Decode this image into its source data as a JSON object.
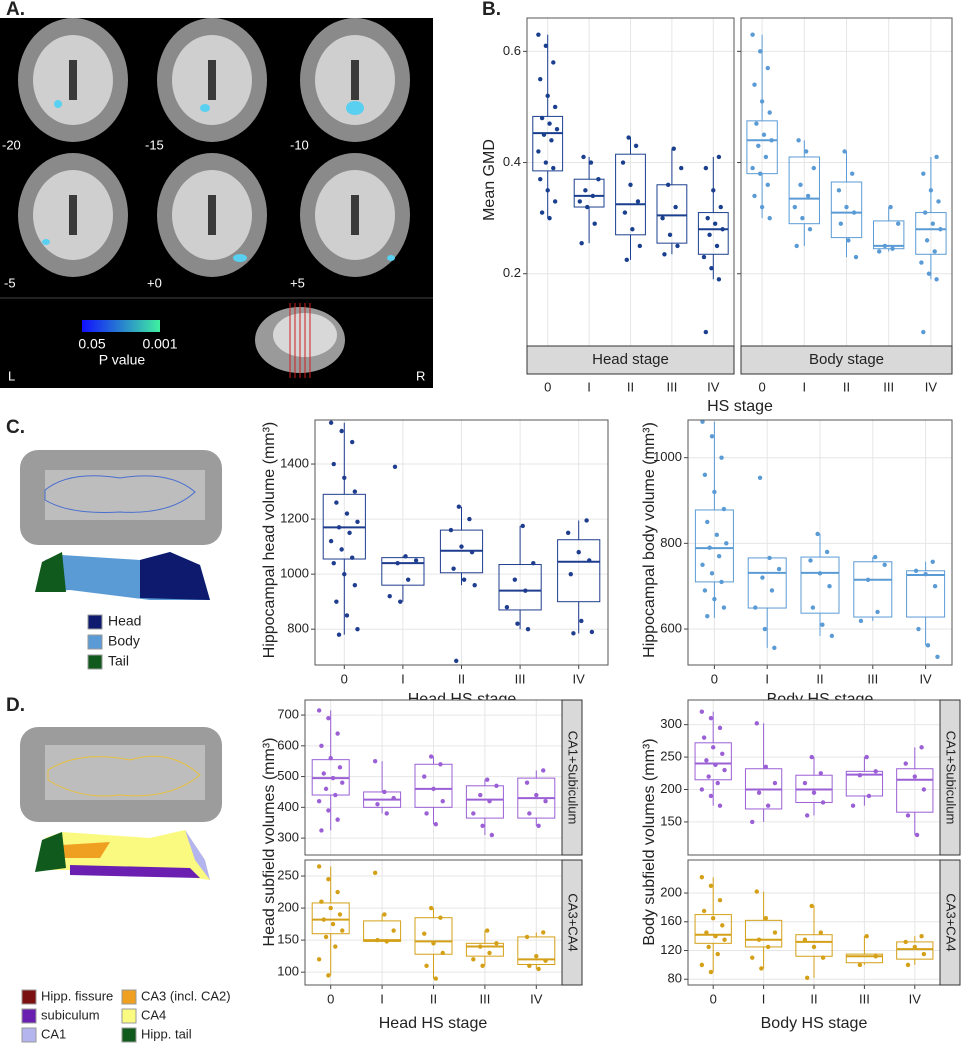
{
  "panel_labels": [
    "A.",
    "B.",
    "C.",
    "D."
  ],
  "brain_panel": {
    "slice_labels": [
      "-20",
      "-15",
      "-10",
      "-5",
      "+0",
      "+5"
    ],
    "colorbar_low": "0.05",
    "colorbar_high": "0.001",
    "colorbar_title": "P value",
    "left": "L",
    "right": "R"
  },
  "c_legend": [
    {
      "label": "Head",
      "color": "#0d1a6e"
    },
    {
      "label": "Body",
      "color": "#5b9bd5"
    },
    {
      "label": "Tail",
      "color": "#0f5a1c"
    }
  ],
  "d_legend": [
    {
      "label": "Hipp. fissure",
      "color": "#7a1010"
    },
    {
      "label": "subiculum",
      "color": "#6a1fb0"
    },
    {
      "label": "CA1",
      "color": "#b4b4ee"
    },
    {
      "label": "CA3 (incl. CA2)",
      "color": "#f0a020"
    },
    {
      "label": "CA4",
      "color": "#fafa80"
    },
    {
      "label": "Hipp. tail",
      "color": "#0f5a1c"
    }
  ],
  "chart_data": [
    {
      "type": "box",
      "y_label": "Mean GMD",
      "x_label": "HS stage",
      "categories": [
        "0",
        "I",
        "II",
        "III",
        "IV"
      ],
      "ylim": [
        0.07,
        0.66
      ],
      "yticks": [
        0.2,
        0.4,
        0.6
      ],
      "grid": true,
      "facets": [
        {
          "strip": "Head stage",
          "color": "#1a3f8f",
          "groups": [
            {
              "low": 0.3,
              "q1": 0.385,
              "median": 0.453,
              "q3": 0.483,
              "high": 0.63,
              "points": [
                0.63,
                0.61,
                0.58,
                0.55,
                0.52,
                0.5,
                0.48,
                0.47,
                0.46,
                0.45,
                0.44,
                0.42,
                0.4,
                0.39,
                0.37,
                0.35,
                0.33,
                0.31,
                0.3
              ]
            },
            {
              "low": 0.255,
              "q1": 0.32,
              "median": 0.34,
              "q3": 0.37,
              "high": 0.41,
              "points": [
                0.41,
                0.4,
                0.37,
                0.35,
                0.34,
                0.33,
                0.32,
                0.29,
                0.255
              ]
            },
            {
              "low": 0.225,
              "q1": 0.27,
              "median": 0.325,
              "q3": 0.415,
              "high": 0.445,
              "points": [
                0.445,
                0.43,
                0.4,
                0.36,
                0.33,
                0.31,
                0.28,
                0.25,
                0.225
              ]
            },
            {
              "low": 0.235,
              "q1": 0.255,
              "median": 0.305,
              "q3": 0.36,
              "high": 0.425,
              "points": [
                0.425,
                0.39,
                0.36,
                0.32,
                0.3,
                0.27,
                0.25,
                0.235
              ]
            },
            {
              "low": 0.19,
              "q1": 0.235,
              "median": 0.28,
              "q3": 0.31,
              "high": 0.41,
              "points": [
                0.41,
                0.39,
                0.35,
                0.32,
                0.3,
                0.29,
                0.28,
                0.27,
                0.25,
                0.23,
                0.21,
                0.19,
                0.095
              ]
            }
          ]
        },
        {
          "strip": "Body stage",
          "color": "#5b9bd5",
          "groups": [
            {
              "low": 0.3,
              "q1": 0.38,
              "median": 0.44,
              "q3": 0.475,
              "high": 0.63,
              "points": [
                0.63,
                0.6,
                0.57,
                0.54,
                0.51,
                0.49,
                0.47,
                0.45,
                0.44,
                0.43,
                0.41,
                0.39,
                0.38,
                0.36,
                0.34,
                0.32,
                0.3
              ]
            },
            {
              "low": 0.25,
              "q1": 0.29,
              "median": 0.335,
              "q3": 0.41,
              "high": 0.44,
              "points": [
                0.44,
                0.42,
                0.39,
                0.36,
                0.34,
                0.32,
                0.3,
                0.28,
                0.25
              ]
            },
            {
              "low": 0.23,
              "q1": 0.265,
              "median": 0.31,
              "q3": 0.365,
              "high": 0.42,
              "points": [
                0.42,
                0.38,
                0.35,
                0.32,
                0.31,
                0.29,
                0.26,
                0.23
              ]
            },
            {
              "low": 0.24,
              "q1": 0.245,
              "median": 0.25,
              "q3": 0.295,
              "high": 0.32,
              "points": [
                0.32,
                0.29,
                0.25,
                0.245,
                0.24
              ]
            },
            {
              "low": 0.19,
              "q1": 0.235,
              "median": 0.28,
              "q3": 0.31,
              "high": 0.41,
              "points": [
                0.41,
                0.38,
                0.35,
                0.33,
                0.31,
                0.29,
                0.28,
                0.26,
                0.24,
                0.22,
                0.2,
                0.19,
                0.095
              ]
            }
          ]
        }
      ]
    },
    {
      "type": "box",
      "y_label": "Hippocampal head volume (mm³)",
      "x_label": "Head HS stage",
      "categories": [
        "0",
        "I",
        "II",
        "III",
        "IV"
      ],
      "ylim": [
        670,
        1560
      ],
      "yticks": [
        800,
        1000,
        1200,
        1400
      ],
      "grid": true,
      "facets": [
        {
          "color": "#1f3d8f",
          "groups": [
            {
              "low": 780,
              "q1": 1055,
              "median": 1170,
              "q3": 1290,
              "high": 1550,
              "points": [
                1550,
                1520,
                1480,
                1400,
                1350,
                1300,
                1260,
                1220,
                1190,
                1170,
                1150,
                1120,
                1090,
                1060,
                1040,
                1000,
                960,
                900,
                850,
                800,
                780
              ]
            },
            {
              "low": 900,
              "q1": 960,
              "median": 1040,
              "q3": 1060,
              "high": 1065,
              "points": [
                1390,
                1065,
                1050,
                1040,
                980,
                920,
                900
              ]
            },
            {
              "low": 960,
              "q1": 1005,
              "median": 1085,
              "q3": 1160,
              "high": 1245,
              "points": [
                1245,
                1200,
                1160,
                1100,
                1080,
                1020,
                980,
                960,
                685
              ]
            },
            {
              "low": 800,
              "q1": 870,
              "median": 940,
              "q3": 1035,
              "high": 1175,
              "points": [
                1175,
                1040,
                980,
                940,
                880,
                820,
                800
              ]
            },
            {
              "low": 785,
              "q1": 900,
              "median": 1045,
              "q3": 1125,
              "high": 1195,
              "points": [
                1195,
                1150,
                1080,
                1050,
                1000,
                830,
                790,
                785
              ]
            }
          ]
        }
      ]
    },
    {
      "type": "box",
      "y_label": "Hippocampal body volume (mm³)",
      "x_label": "Body HS stage",
      "categories": [
        "0",
        "I",
        "II",
        "III",
        "IV"
      ],
      "ylim": [
        516,
        1088
      ],
      "yticks": [
        600,
        800,
        1000
      ],
      "grid": true,
      "facets": [
        {
          "color": "#5b9bd5",
          "groups": [
            {
              "low": 626,
              "q1": 710,
              "median": 789,
              "q3": 878,
              "high": 1084,
              "points": [
                1084,
                1050,
                1000,
                960,
                920,
                880,
                850,
                820,
                800,
                790,
                770,
                750,
                730,
                710,
                690,
                670,
                650,
                630
              ]
            },
            {
              "low": 556,
              "q1": 649,
              "median": 731,
              "q3": 766,
              "high": 766,
              "points": [
                953,
                766,
                740,
                720,
                690,
                650,
                600,
                556
              ]
            },
            {
              "low": 584,
              "q1": 637,
              "median": 731,
              "q3": 768,
              "high": 822,
              "points": [
                822,
                780,
                760,
                730,
                700,
                650,
                610,
                584
              ]
            },
            {
              "low": 619,
              "q1": 628,
              "median": 715,
              "q3": 757,
              "high": 768,
              "points": [
                768,
                750,
                715,
                640,
                619
              ]
            },
            {
              "low": 562,
              "q1": 628,
              "median": 726,
              "q3": 736,
              "high": 757,
              "points": [
                757,
                736,
                728,
                700,
                600,
                562,
                535
              ]
            }
          ]
        }
      ]
    },
    {
      "type": "box",
      "y_label": "Head subfield volumes (mm³)",
      "x_label": "Head HS stage",
      "categories": [
        "0",
        "I",
        "II",
        "III",
        "IV"
      ],
      "grid": true,
      "facets": [
        {
          "strip": "CA1+Subiculum",
          "color": "#9b5fd6",
          "ylim": [
            245,
            749
          ],
          "yticks": [
            300,
            400,
            500,
            600,
            700
          ],
          "groups": [
            {
              "low": 325,
              "q1": 440,
              "median": 495,
              "q3": 555,
              "high": 715,
              "points": [
                715,
                690,
                640,
                600,
                560,
                530,
                510,
                495,
                480,
                460,
                440,
                420,
                390,
                360,
                325
              ]
            },
            {
              "low": 380,
              "q1": 400,
              "median": 425,
              "q3": 450,
              "high": 550,
              "points": [
                550,
                450,
                430,
                410,
                380
              ]
            },
            {
              "low": 345,
              "q1": 400,
              "median": 460,
              "q3": 540,
              "high": 565,
              "points": [
                565,
                540,
                500,
                460,
                420,
                380,
                345
              ]
            },
            {
              "low": 310,
              "q1": 365,
              "median": 425,
              "q3": 470,
              "high": 490,
              "points": [
                490,
                470,
                440,
                420,
                380,
                340,
                310
              ]
            },
            {
              "low": 340,
              "q1": 365,
              "median": 430,
              "q3": 495,
              "high": 520,
              "points": [
                520,
                480,
                440,
                420,
                380,
                340
              ]
            }
          ]
        },
        {
          "strip": "CA3+CA4",
          "color": "#d4a017",
          "ylim": [
            80,
            275
          ],
          "yticks": [
            100,
            150,
            200,
            250
          ],
          "groups": [
            {
              "low": 95,
              "q1": 160,
              "median": 182,
              "q3": 208,
              "high": 265,
              "points": [
                265,
                245,
                225,
                210,
                200,
                190,
                182,
                175,
                165,
                155,
                140,
                120,
                95
              ]
            },
            {
              "low": 148,
              "q1": 148,
              "median": 150,
              "q3": 180,
              "high": 190,
              "points": [
                255,
                190,
                165,
                150,
                148
              ]
            },
            {
              "low": 90,
              "q1": 128,
              "median": 148,
              "q3": 185,
              "high": 200,
              "points": [
                200,
                185,
                160,
                145,
                130,
                110,
                90
              ]
            },
            {
              "low": 110,
              "q1": 125,
              "median": 140,
              "q3": 145,
              "high": 165,
              "points": [
                165,
                145,
                140,
                130,
                120,
                110
              ]
            },
            {
              "low": 105,
              "q1": 112,
              "median": 120,
              "q3": 155,
              "high": 162,
              "points": [
                162,
                155,
                125,
                118,
                110,
                105
              ]
            }
          ]
        }
      ]
    },
    {
      "type": "box",
      "y_label": "Body subfield volumes (mm³)",
      "x_label": "Body HS stage",
      "categories": [
        "0",
        "I",
        "II",
        "III",
        "IV"
      ],
      "grid": true,
      "facets": [
        {
          "strip": "CA1+Subiculum",
          "color": "#9b5fd6",
          "ylim": [
            99,
            338
          ],
          "yticks": [
            150,
            200,
            250,
            300
          ],
          "groups": [
            {
              "low": 175,
              "q1": 215,
              "median": 240,
              "q3": 272,
              "high": 320,
              "points": [
                320,
                310,
                295,
                280,
                265,
                255,
                245,
                238,
                230,
                220,
                210,
                200,
                190,
                175
              ]
            },
            {
              "low": 150,
              "q1": 170,
              "median": 200,
              "q3": 232,
              "high": 302,
              "points": [
                302,
                235,
                210,
                195,
                175,
                150
              ]
            },
            {
              "low": 160,
              "q1": 180,
              "median": 200,
              "q3": 222,
              "high": 250,
              "points": [
                250,
                225,
                210,
                195,
                180,
                160
              ]
            },
            {
              "low": 175,
              "q1": 190,
              "median": 223,
              "q3": 228,
              "high": 250,
              "points": [
                250,
                228,
                222,
                190,
                175
              ]
            },
            {
              "low": 130,
              "q1": 165,
              "median": 215,
              "q3": 232,
              "high": 265,
              "points": [
                265,
                240,
                220,
                200,
                160,
                130
              ]
            }
          ]
        },
        {
          "strip": "CA3+CA4",
          "color": "#d4a017",
          "ylim": [
            72,
            246
          ],
          "yticks": [
            80,
            120,
            160,
            200
          ],
          "groups": [
            {
              "low": 90,
              "q1": 130,
              "median": 142,
              "q3": 170,
              "high": 222,
              "points": [
                222,
                210,
                190,
                175,
                165,
                155,
                145,
                140,
                135,
                125,
                115,
                100,
                90
              ]
            },
            {
              "low": 95,
              "q1": 125,
              "median": 135,
              "q3": 162,
              "high": 202,
              "points": [
                202,
                165,
                145,
                135,
                125,
                110,
                95
              ]
            },
            {
              "low": 82,
              "q1": 112,
              "median": 132,
              "q3": 142,
              "high": 182,
              "points": [
                182,
                145,
                135,
                125,
                110,
                82
              ]
            },
            {
              "low": 100,
              "q1": 103,
              "median": 112,
              "q3": 115,
              "high": 140,
              "points": [
                140,
                112,
                100
              ]
            },
            {
              "low": 100,
              "q1": 108,
              "median": 122,
              "q3": 132,
              "high": 140,
              "points": [
                140,
                132,
                125,
                115,
                100
              ]
            }
          ]
        }
      ]
    }
  ]
}
